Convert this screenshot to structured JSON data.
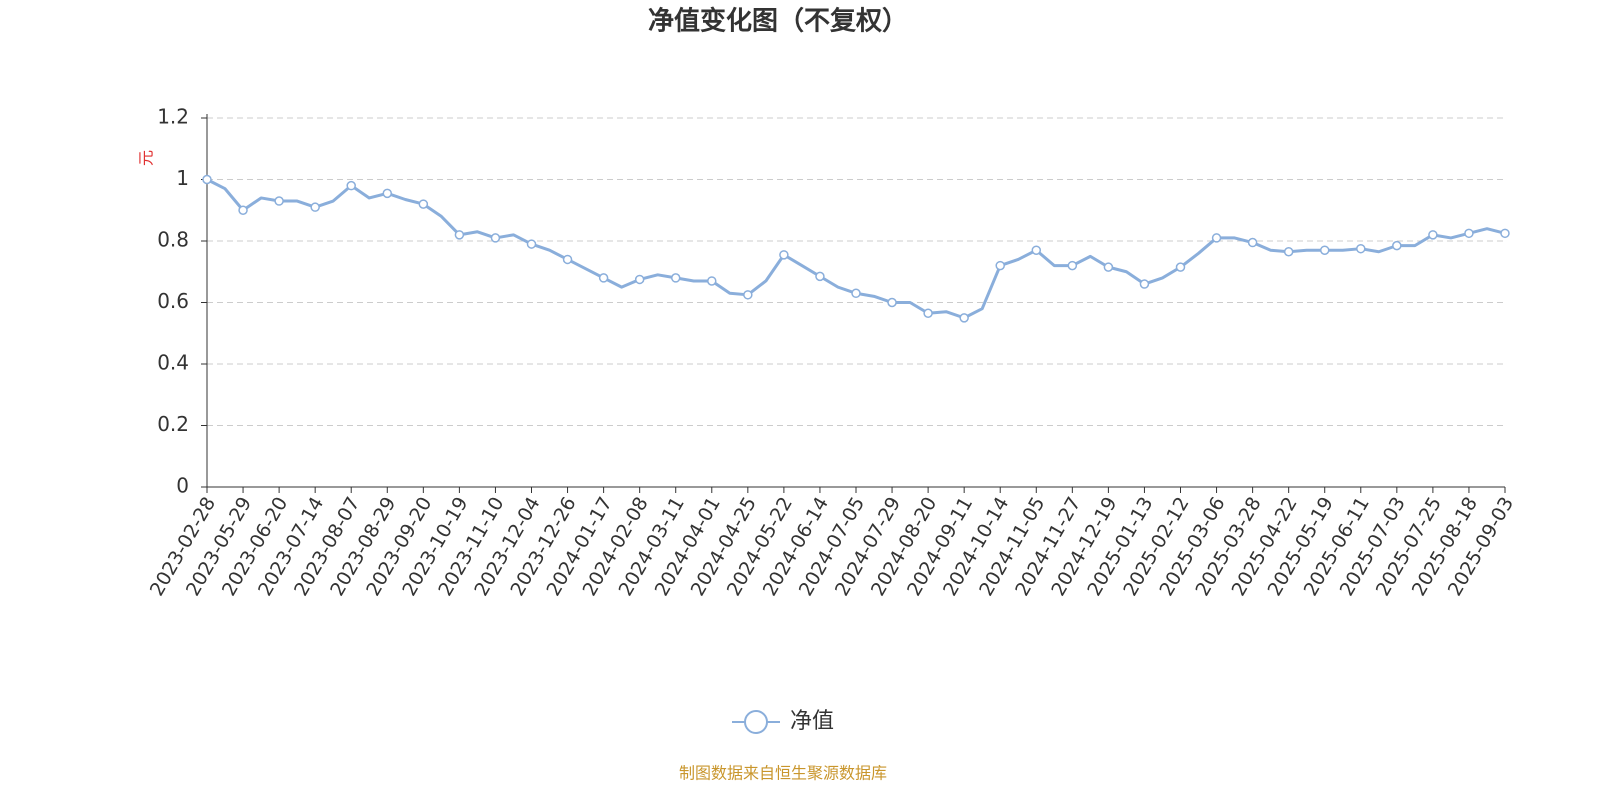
{
  "chart_data": {
    "type": "line",
    "title": "净值变化图（不复权）",
    "y_label": "元",
    "source": "制图数据来自恒生聚源数据库",
    "categories": [
      "2023-02-28",
      null,
      "2023-05-29",
      null,
      "2023-06-20",
      null,
      "2023-07-14",
      null,
      "2023-08-07",
      null,
      "2023-08-29",
      null,
      "2023-09-20",
      null,
      "2023-10-19",
      null,
      "2023-11-10",
      null,
      "2023-12-04",
      null,
      "2023-12-26",
      null,
      "2024-01-17",
      null,
      "2024-02-08",
      null,
      "2024-03-11",
      null,
      "2024-04-01",
      null,
      "2024-04-25",
      null,
      "2024-05-22",
      null,
      "2024-06-14",
      null,
      "2024-07-05",
      null,
      "2024-07-29",
      null,
      "2024-08-20",
      null,
      "2024-09-11",
      null,
      "2024-10-14",
      null,
      "2024-11-05",
      null,
      "2024-11-27",
      null,
      "2024-12-19",
      null,
      "2025-01-13",
      null,
      "2025-02-12",
      null,
      "2025-03-06",
      null,
      "2025-03-28",
      null,
      "2025-04-22",
      null,
      "2025-05-19",
      null,
      "2025-06-11",
      null,
      "2025-07-03",
      null,
      "2025-07-25",
      null,
      "2025-08-18",
      null,
      "2025-09-03"
    ],
    "series": [
      {
        "name": "净值",
        "color": "#8aaedb",
        "values": [
          1.0,
          0.97,
          0.9,
          0.94,
          0.93,
          0.93,
          0.91,
          0.93,
          0.98,
          0.94,
          0.955,
          0.935,
          0.92,
          0.88,
          0.82,
          0.83,
          0.81,
          0.82,
          0.79,
          0.77,
          0.74,
          0.71,
          0.68,
          0.65,
          0.675,
          0.69,
          0.68,
          0.67,
          0.67,
          0.63,
          0.625,
          0.67,
          0.755,
          0.72,
          0.685,
          0.65,
          0.63,
          0.62,
          0.6,
          0.6,
          0.565,
          0.57,
          0.55,
          0.58,
          0.72,
          0.74,
          0.77,
          0.72,
          0.72,
          0.75,
          0.715,
          0.7,
          0.66,
          0.68,
          0.715,
          0.76,
          0.81,
          0.81,
          0.795,
          0.77,
          0.765,
          0.77,
          0.77,
          0.77,
          0.775,
          0.765,
          0.785,
          0.785,
          0.82,
          0.81,
          0.825,
          0.84,
          0.825
        ]
      }
    ],
    "ylim": [
      0,
      1.2
    ],
    "yticks": [
      0,
      0.2,
      0.4,
      0.6,
      0.8,
      1,
      1.2
    ],
    "grid": true
  }
}
